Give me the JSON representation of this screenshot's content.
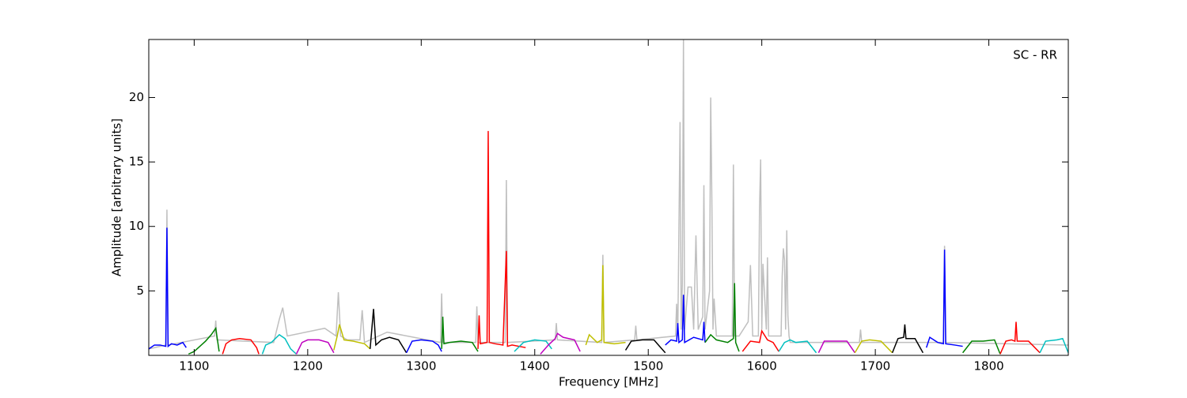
{
  "chart_data": {
    "type": "line",
    "annotation": "SC - RR",
    "xlabel": "Frequency [MHz]",
    "ylabel": "Amplitude [arbitrary units]",
    "xlim": [
      1060,
      1870
    ],
    "ylim": [
      0,
      24.5
    ],
    "xticks": [
      1100,
      1200,
      1300,
      1400,
      1500,
      1600,
      1700,
      1800
    ],
    "yticks": [
      5,
      10,
      15,
      20
    ],
    "series": [
      {
        "color": "#bfbfbf",
        "x": [
          1060,
          1075,
          1076,
          1077,
          1118,
          1119,
          1120,
          1170,
          1175,
          1178,
          1182,
          1215,
          1225,
          1227,
          1229,
          1235,
          1246,
          1248,
          1250,
          1270,
          1317,
          1318,
          1319,
          1348,
          1349,
          1350,
          1374,
          1375,
          1376,
          1418,
          1419,
          1420,
          1459,
          1460,
          1461,
          1488,
          1489,
          1490,
          1524,
          1525,
          1526,
          1528,
          1529,
          1530,
          1531,
          1532,
          1535,
          1538,
          1540,
          1542,
          1544,
          1548,
          1549,
          1550,
          1554,
          1555,
          1556,
          1557,
          1558,
          1560,
          1574,
          1575,
          1576,
          1580,
          1588,
          1590,
          1592,
          1597,
          1598,
          1599,
          1600,
          1601,
          1604,
          1605,
          1606,
          1617,
          1618,
          1619,
          1620,
          1621,
          1622,
          1623,
          1624,
          1625,
          1686,
          1687,
          1688,
          1760,
          1761,
          1762,
          1870
        ],
        "values": [
          0.5,
          0.8,
          11.3,
          0.8,
          1.5,
          2.7,
          1.2,
          1.0,
          2.8,
          3.7,
          1.5,
          2.1,
          1.5,
          4.9,
          1.5,
          1.2,
          1.2,
          3.5,
          1.0,
          1.8,
          1.0,
          4.8,
          1.0,
          1.0,
          3.8,
          1.0,
          1.0,
          13.6,
          1.0,
          1.2,
          2.5,
          1.2,
          1.0,
          7.8,
          1.0,
          1.2,
          2.3,
          1.2,
          1.5,
          4.0,
          1.5,
          18.1,
          2,
          5.5,
          24.5,
          2,
          5.3,
          5.3,
          2,
          9.3,
          2,
          3,
          13.2,
          2,
          5,
          20.0,
          12.2,
          2,
          4.4,
          1.5,
          1.5,
          14.8,
          1.5,
          1.5,
          2.6,
          7.0,
          1.5,
          1.5,
          11.4,
          15.2,
          2,
          7.1,
          2,
          7.6,
          1.5,
          1.5,
          6.2,
          8.3,
          7.4,
          2,
          9.7,
          3.1,
          1.5,
          1.0,
          1.0,
          2.0,
          1.0,
          1.0,
          8.5,
          1.0,
          0.8
        ]
      },
      {
        "color": "#0000ff",
        "x": [
          1060,
          1065,
          1070,
          1075,
          1076,
          1077,
          1080,
          1085,
          1090,
          1093
        ],
        "values": [
          0.5,
          0.8,
          0.8,
          0.7,
          9.9,
          0.7,
          0.9,
          0.8,
          1.0,
          0.6
        ]
      },
      {
        "color": "#008000",
        "x": [
          1095,
          1100,
          1105,
          1110,
          1115,
          1119,
          1122
        ],
        "values": [
          0.1,
          0.3,
          0.7,
          1.1,
          1.6,
          2.1,
          0.3
        ]
      },
      {
        "color": "#ff0000",
        "x": [
          1125,
          1128,
          1133,
          1140,
          1150,
          1155,
          1157
        ],
        "values": [
          0.1,
          0.9,
          1.2,
          1.3,
          1.2,
          0.6,
          0.1
        ]
      },
      {
        "color": "#00bfbf",
        "x": [
          1160,
          1163,
          1168,
          1175,
          1180,
          1185,
          1190
        ],
        "values": [
          0.1,
          0.8,
          1.0,
          1.6,
          1.3,
          0.5,
          0.1
        ]
      },
      {
        "color": "#bf00bf",
        "x": [
          1190,
          1195,
          1200,
          1210,
          1218,
          1223
        ],
        "values": [
          0.1,
          1.0,
          1.2,
          1.2,
          1.0,
          0.2
        ]
      },
      {
        "color": "#bfbf00",
        "x": [
          1223,
          1226,
          1228,
          1232,
          1240,
          1250,
          1255
        ],
        "values": [
          0.4,
          1.5,
          2.4,
          1.2,
          1.1,
          0.9,
          0.5
        ]
      },
      {
        "color": "#000000",
        "x": [
          1255,
          1258,
          1260,
          1265,
          1272,
          1280,
          1287
        ],
        "values": [
          0.5,
          3.6,
          0.8,
          1.2,
          1.4,
          1.2,
          0.2
        ]
      },
      {
        "color": "#0000ff",
        "x": [
          1287,
          1292,
          1300,
          1310,
          1315,
          1318
        ],
        "values": [
          0.2,
          1.1,
          1.2,
          1.1,
          0.8,
          0.3
        ]
      },
      {
        "color": "#008000",
        "x": [
          1318,
          1319,
          1320,
          1325,
          1335,
          1345,
          1350
        ],
        "values": [
          0.5,
          3.0,
          0.9,
          1.0,
          1.1,
          1.0,
          0.3
        ]
      },
      {
        "color": "#ff0000",
        "x": [
          1350,
          1351,
          1352,
          1358,
          1359,
          1360,
          1365,
          1372,
          1375,
          1376,
          1380,
          1392
        ],
        "values": [
          0.5,
          3.1,
          0.9,
          1.0,
          17.4,
          1.0,
          0.9,
          0.8,
          8.1,
          0.7,
          0.8,
          0.6
        ]
      },
      {
        "color": "#00bfbf",
        "x": [
          1382,
          1390,
          1400,
          1410,
          1415
        ],
        "values": [
          0.3,
          1.0,
          1.2,
          1.1,
          0.5
        ]
      },
      {
        "color": "#bf00bf",
        "x": [
          1405,
          1412,
          1418,
          1420,
          1425,
          1435,
          1440
        ],
        "values": [
          0.1,
          0.8,
          1.3,
          1.7,
          1.4,
          1.2,
          0.3
        ]
      },
      {
        "color": "#bfbf00",
        "x": [
          1445,
          1448,
          1455,
          1459,
          1460,
          1461,
          1470,
          1480
        ],
        "values": [
          0.8,
          1.6,
          1.0,
          1.2,
          7.0,
          1.0,
          0.9,
          1.0
        ]
      },
      {
        "color": "#000000",
        "x": [
          1480,
          1485,
          1495,
          1505,
          1510,
          1515
        ],
        "values": [
          0.4,
          1.1,
          1.2,
          1.2,
          0.7,
          0.2
        ]
      },
      {
        "color": "#0000ff",
        "x": [
          1515,
          1520,
          1525,
          1526,
          1527,
          1530,
          1531,
          1532,
          1540,
          1548,
          1549,
          1550
        ],
        "values": [
          0.8,
          1.2,
          1.1,
          2.5,
          1.0,
          1.2,
          4.7,
          1.0,
          1.4,
          1.2,
          2.6,
          1.0
        ]
      },
      {
        "color": "#008000",
        "x": [
          1550,
          1555,
          1560,
          1570,
          1575,
          1576,
          1577,
          1580
        ],
        "values": [
          1.0,
          1.6,
          1.2,
          1.0,
          1.3,
          5.6,
          1.0,
          0.3
        ]
      },
      {
        "color": "#ff0000",
        "x": [
          1583,
          1590,
          1598,
          1600,
          1605,
          1610,
          1615
        ],
        "values": [
          0.3,
          1.1,
          1.0,
          1.9,
          1.2,
          1.0,
          0.3
        ]
      },
      {
        "color": "#00bfbf",
        "x": [
          1615,
          1620,
          1625,
          1630,
          1640,
          1648
        ],
        "values": [
          0.3,
          1.0,
          1.2,
          1.0,
          1.1,
          0.2
        ]
      },
      {
        "color": "#bf00bf",
        "x": [
          1650,
          1655,
          1665,
          1675,
          1682
        ],
        "values": [
          0.2,
          1.1,
          1.1,
          1.1,
          0.2
        ]
      },
      {
        "color": "#bfbf00",
        "x": [
          1682,
          1688,
          1695,
          1705,
          1715
        ],
        "values": [
          0.2,
          1.1,
          1.2,
          1.1,
          0.2
        ]
      },
      {
        "color": "#000000",
        "x": [
          1715,
          1720,
          1725,
          1726,
          1727,
          1735,
          1742
        ],
        "values": [
          0.2,
          1.3,
          1.4,
          2.4,
          1.3,
          1.3,
          0.2
        ]
      },
      {
        "color": "#0000ff",
        "x": [
          1745,
          1748,
          1755,
          1760,
          1761,
          1762,
          1770,
          1777
        ],
        "values": [
          0.6,
          1.4,
          1.0,
          0.9,
          8.2,
          0.9,
          0.8,
          0.7
        ]
      },
      {
        "color": "#008000",
        "x": [
          1777,
          1785,
          1795,
          1805,
          1810
        ],
        "values": [
          0.2,
          1.1,
          1.1,
          1.2,
          0.1
        ]
      },
      {
        "color": "#ff0000",
        "x": [
          1810,
          1815,
          1820,
          1823,
          1824,
          1825,
          1835,
          1845
        ],
        "values": [
          0.1,
          1.1,
          1.2,
          1.1,
          2.6,
          1.1,
          1.1,
          0.2
        ]
      },
      {
        "color": "#00bfbf",
        "x": [
          1845,
          1850,
          1860,
          1865,
          1870
        ],
        "values": [
          0.2,
          1.1,
          1.2,
          1.3,
          0.2
        ]
      }
    ]
  }
}
